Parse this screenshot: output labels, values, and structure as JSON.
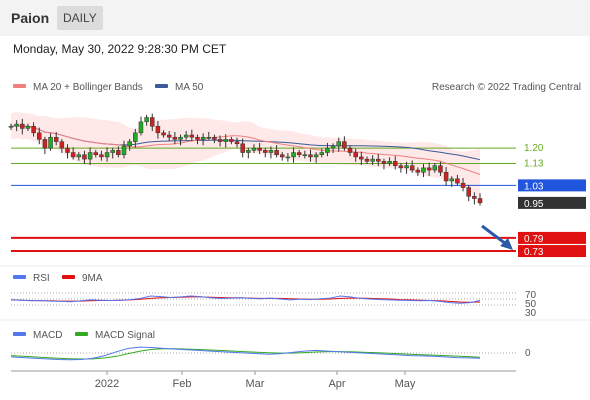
{
  "header": {
    "ticker": "Paion",
    "period": "DAILY"
  },
  "datetime": "Monday, May 30, 2022 9:28:30 PM CET",
  "credit": "Research © 2022 Trading Central",
  "colors": {
    "ma20": "#f08080",
    "ma50": "#3a5a9a",
    "bull": "#22aa22",
    "bear": "#cc2222",
    "support": "#e01010",
    "pivot": "#2255dd",
    "resistance": "#66aa22",
    "rsi": "#5577ee",
    "macd": "#5577ee",
    "signal": "#33aa22",
    "arrow": "#2a5aa8"
  },
  "icons": {
    "trend_arrow": "arrow-down-right-icon"
  },
  "chart_data": [
    {
      "type": "candlestick",
      "title": "",
      "legend": [
        "MA 20 + Bollinger Bands",
        "MA 50"
      ],
      "legend_position": "top-left",
      "x_ticks": [
        "2022",
        "Feb",
        "Mar",
        "Apr",
        "May"
      ],
      "ylim": [
        0.68,
        1.42
      ],
      "close_series_approx": [
        1.3,
        1.31,
        1.29,
        1.3,
        1.27,
        1.24,
        1.2,
        1.25,
        1.23,
        1.2,
        1.18,
        1.16,
        1.17,
        1.15,
        1.18,
        1.17,
        1.16,
        1.18,
        1.19,
        1.17,
        1.21,
        1.23,
        1.27,
        1.32,
        1.34,
        1.3,
        1.27,
        1.26,
        1.25,
        1.24,
        1.25,
        1.26,
        1.25,
        1.24,
        1.25,
        1.25,
        1.24,
        1.23,
        1.24,
        1.23,
        1.22,
        1.18,
        1.19,
        1.2,
        1.19,
        1.18,
        1.19,
        1.17,
        1.16,
        1.16,
        1.18,
        1.17,
        1.17,
        1.16,
        1.17,
        1.18,
        1.2,
        1.21,
        1.23,
        1.2,
        1.18,
        1.16,
        1.15,
        1.14,
        1.15,
        1.14,
        1.13,
        1.14,
        1.12,
        1.11,
        1.12,
        1.1,
        1.09,
        1.11,
        1.1,
        1.12,
        1.09,
        1.05,
        1.06,
        1.04,
        1.02,
        0.98,
        0.97,
        0.95
      ],
      "levels": [
        {
          "value": 1.2,
          "label": "1.20",
          "kind": "resistance"
        },
        {
          "value": 1.13,
          "label": "1.13",
          "kind": "resistance"
        },
        {
          "value": 1.03,
          "label": "1.03",
          "kind": "pivot"
        },
        {
          "value": 0.95,
          "label": "0.95",
          "kind": "last"
        },
        {
          "value": 0.79,
          "label": "0.79",
          "kind": "support"
        },
        {
          "value": 0.73,
          "label": "0.73",
          "kind": "support"
        }
      ]
    },
    {
      "type": "line",
      "title": "",
      "legend": [
        "RSI",
        "9MA"
      ],
      "y_ticks": [
        "70",
        "50",
        "30"
      ],
      "ylim": [
        0,
        100
      ],
      "rsi_approx": [
        48,
        46,
        44,
        45,
        43,
        42,
        41,
        44,
        47,
        46,
        45,
        46,
        48,
        52,
        60,
        58,
        55,
        57,
        60,
        58,
        54,
        52,
        53,
        54,
        52,
        51,
        53,
        50,
        47,
        49,
        48,
        51,
        53,
        60,
        57,
        52,
        50,
        48,
        47,
        46,
        45,
        44,
        45,
        42,
        38,
        36,
        38,
        45
      ],
      "ma9_approx": [
        47,
        46,
        45,
        44,
        44,
        43,
        43,
        43,
        44,
        45,
        45,
        46,
        47,
        49,
        52,
        54,
        55,
        56,
        57,
        57,
        56,
        55,
        54,
        54,
        53,
        52,
        52,
        52,
        51,
        50,
        49,
        49,
        50,
        52,
        53,
        53,
        52,
        51,
        50,
        48,
        47,
        46,
        45,
        44,
        42,
        40,
        39,
        40
      ]
    },
    {
      "type": "line",
      "title": "",
      "legend": [
        "MACD",
        "MACD Signal"
      ],
      "y_ticks": [
        "0"
      ],
      "ylim": [
        -1,
        1
      ],
      "macd_approx": [
        -0.3,
        -0.35,
        -0.4,
        -0.45,
        -0.5,
        -0.52,
        -0.5,
        -0.4,
        -0.2,
        0.1,
        0.35,
        0.45,
        0.42,
        0.35,
        0.3,
        0.25,
        0.2,
        0.15,
        0.1,
        0.05,
        0.0,
        -0.05,
        -0.1,
        -0.05,
        0.05,
        0.15,
        0.2,
        0.15,
        0.1,
        0.05,
        0.0,
        -0.05,
        -0.1,
        -0.15,
        -0.2,
        -0.22,
        -0.25,
        -0.3,
        -0.35,
        -0.38,
        -0.4
      ],
      "signal_approx": [
        -0.2,
        -0.25,
        -0.3,
        -0.35,
        -0.4,
        -0.44,
        -0.46,
        -0.45,
        -0.38,
        -0.25,
        -0.05,
        0.15,
        0.28,
        0.33,
        0.33,
        0.3,
        0.27,
        0.23,
        0.19,
        0.15,
        0.1,
        0.06,
        0.02,
        -0.01,
        -0.01,
        0.03,
        0.08,
        0.11,
        0.11,
        0.09,
        0.06,
        0.03,
        -0.01,
        -0.05,
        -0.09,
        -0.13,
        -0.16,
        -0.2,
        -0.24,
        -0.28,
        -0.32
      ]
    }
  ]
}
